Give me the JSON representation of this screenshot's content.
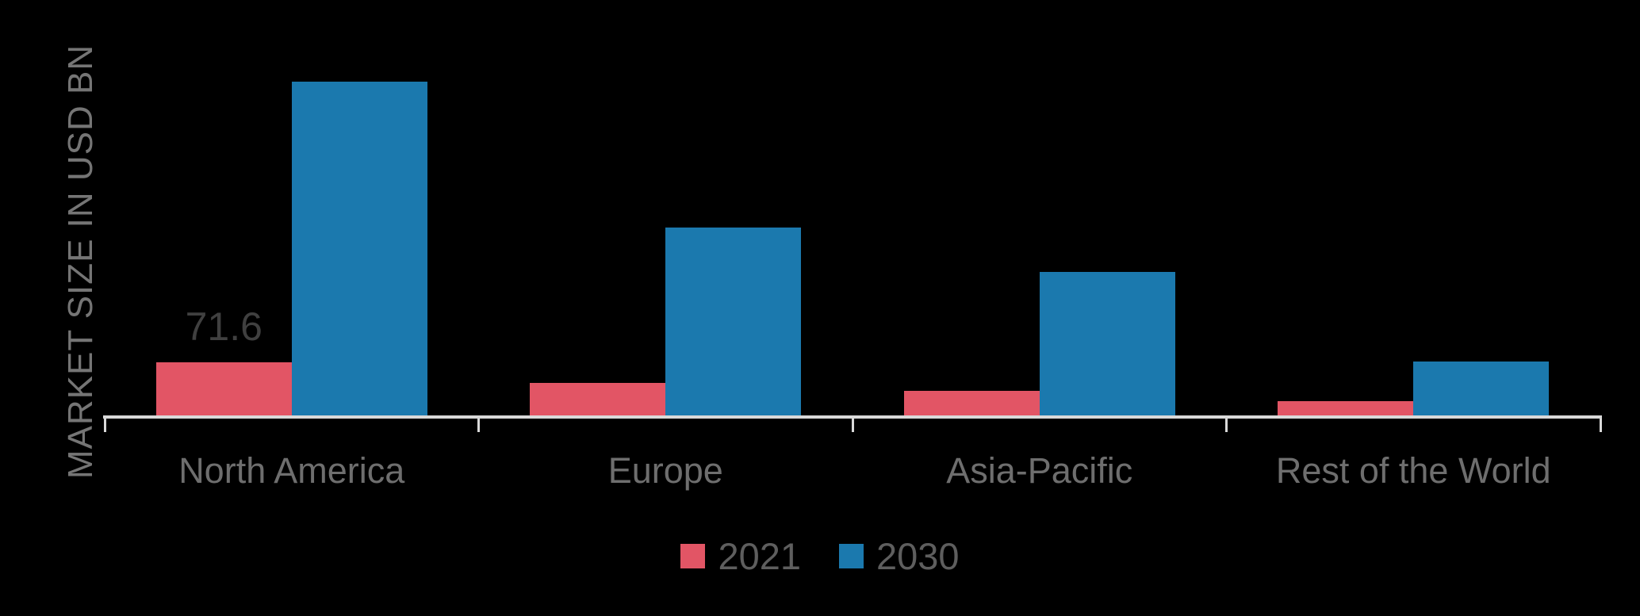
{
  "chart_data": {
    "type": "bar",
    "title": "",
    "categories": [
      "North America",
      "Europe",
      "Asia-Pacific",
      "Rest of the World"
    ],
    "series": [
      {
        "name": "2021",
        "color": "#e25565",
        "values": [
          71.6,
          44,
          33,
          19
        ]
      },
      {
        "name": "2030",
        "color": "#1b79ae",
        "values": [
          450,
          253,
          193,
          73
        ]
      }
    ],
    "xlabel": "",
    "ylabel": "MARKET SIZE IN USD BN",
    "ylim": [
      0,
      500
    ],
    "grid": false,
    "legend_position": "bottom",
    "data_labels": [
      {
        "category_index": 0,
        "series_index": 0,
        "text": "71.6"
      }
    ],
    "colors": {
      "background": "#000000",
      "axis_line": "#d9d9d9",
      "category_label": "#6e6e6e",
      "legend_label": "#5e5e5e",
      "axis_title": "#757575",
      "data_label": "#404040"
    }
  }
}
